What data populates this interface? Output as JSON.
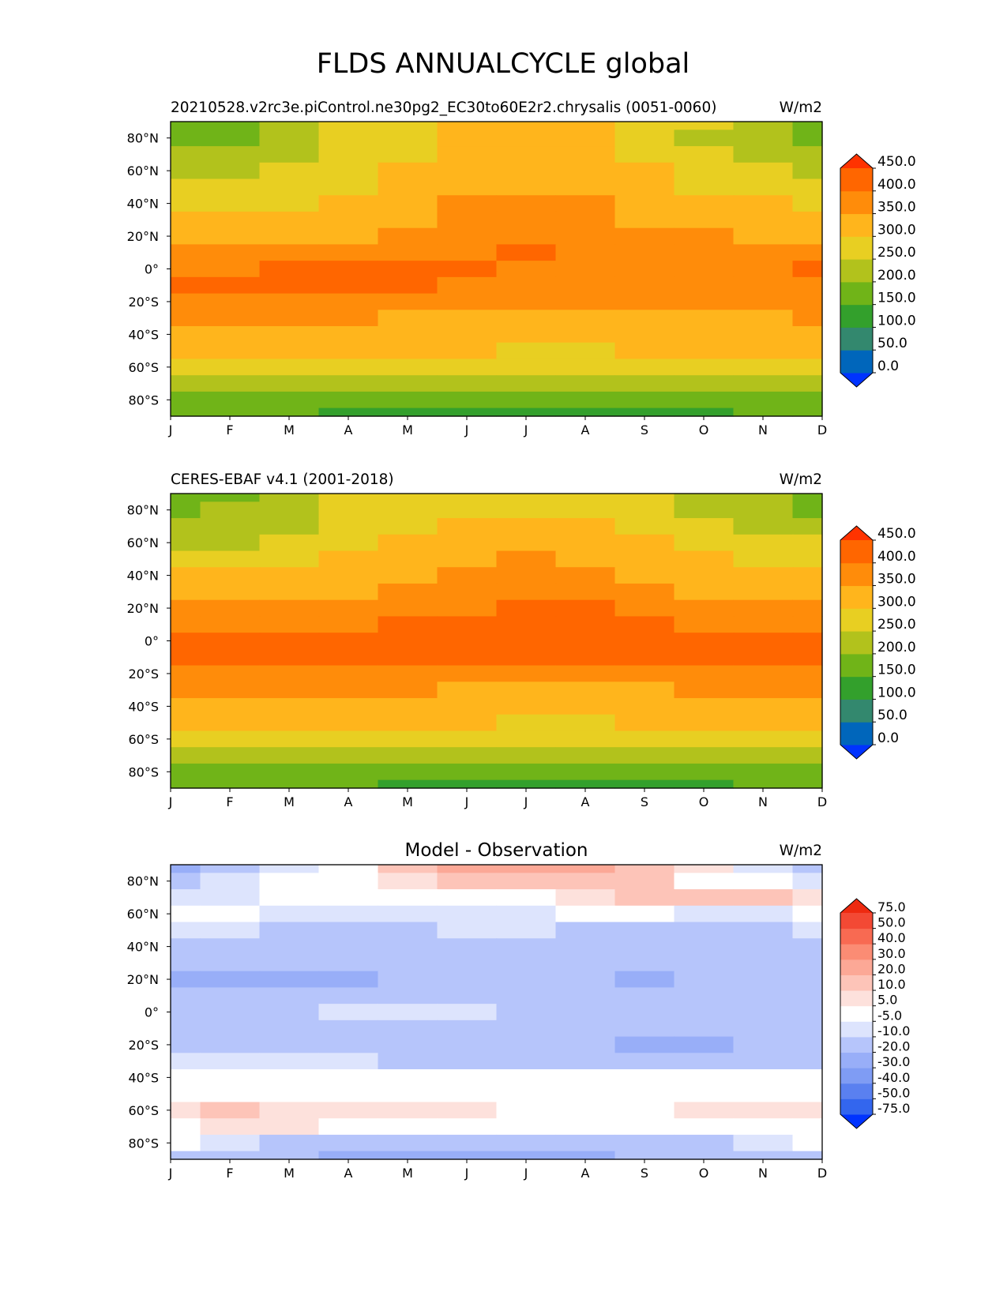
{
  "figure": {
    "title": "FLDS ANNUALCYCLE global"
  },
  "colors": {
    "abs_levels": [
      "#0033ff",
      "#0066bb",
      "#33886e",
      "#33a02c",
      "#70b418",
      "#b2c21c",
      "#e8cf22",
      "#ffb51c",
      "#ff8c0a",
      "#ff6600",
      "#ff3300"
    ],
    "diff_levels": [
      "#0033ff",
      "#3366ee",
      "#5a80f0",
      "#7f9cf4",
      "#98aef8",
      "#b6c5fb",
      "#dde4fd",
      "#ffffff",
      "#fde1dc",
      "#fdc4b8",
      "#fca896",
      "#fb8c74",
      "#f86a52",
      "#f34934",
      "#ee2a10"
    ]
  },
  "chart_data": [
    {
      "type": "heatmap",
      "panel": "model",
      "title_left": "20210528.v2rc3e.piControl.ne30pg2_EC30to60E2r2.chrysalis (0051-0060)",
      "title_center": "",
      "title_right": "W/m2",
      "x_ticklabels": [
        "J",
        "F",
        "M",
        "A",
        "M",
        "J",
        "J",
        "A",
        "S",
        "O",
        "N",
        "D"
      ],
      "y_ticklabels": [
        "80°N",
        "60°N",
        "40°N",
        "20°N",
        "0°",
        "20°S",
        "40°S",
        "60°S",
        "80°S"
      ],
      "y_ticks": [
        80,
        60,
        40,
        20,
        0,
        -20,
        -40,
        -60,
        -80
      ],
      "xlim": [
        1,
        12
      ],
      "ylim": [
        -90,
        90
      ],
      "colorbar_levels": [
        "0.0",
        "50.0",
        "100.0",
        "150.0",
        "200.0",
        "250.0",
        "300.0",
        "350.0",
        "400.0",
        "450.0"
      ],
      "colorbar_extend": "both",
      "lat_rows": [
        90,
        80,
        70,
        60,
        50,
        40,
        30,
        20,
        10,
        0,
        -10,
        -20,
        -30,
        -40,
        -50,
        -60,
        -70,
        -80,
        -90
      ],
      "values": [
        [
          190,
          190,
          220,
          255,
          280,
          300,
          310,
          300,
          280,
          250,
          220,
          190
        ],
        [
          190,
          195,
          225,
          260,
          285,
          300,
          310,
          300,
          275,
          245,
          215,
          190
        ],
        [
          215,
          215,
          240,
          270,
          295,
          310,
          315,
          305,
          285,
          260,
          240,
          215
        ],
        [
          240,
          240,
          255,
          280,
          305,
          320,
          325,
          315,
          300,
          280,
          260,
          245
        ],
        [
          265,
          265,
          275,
          295,
          320,
          340,
          345,
          335,
          315,
          295,
          280,
          270
        ],
        [
          285,
          285,
          290,
          310,
          330,
          355,
          365,
          355,
          330,
          310,
          300,
          290
        ],
        [
          305,
          305,
          310,
          320,
          340,
          360,
          370,
          365,
          345,
          325,
          315,
          310
        ],
        [
          330,
          330,
          335,
          345,
          355,
          370,
          385,
          380,
          365,
          350,
          340,
          335
        ],
        [
          360,
          360,
          365,
          375,
          385,
          395,
          400,
          398,
          390,
          380,
          370,
          365
        ],
        [
          395,
          395,
          405,
          408,
          405,
          400,
          398,
          398,
          398,
          398,
          398,
          400
        ],
        [
          400,
          400,
          405,
          405,
          402,
          395,
          390,
          390,
          392,
          395,
          397,
          398
        ],
        [
          385,
          385,
          388,
          380,
          370,
          360,
          355,
          355,
          358,
          362,
          368,
          375
        ],
        [
          365,
          365,
          362,
          350,
          340,
          335,
          330,
          330,
          335,
          340,
          345,
          350
        ],
        [
          345,
          345,
          342,
          330,
          322,
          318,
          315,
          315,
          318,
          322,
          328,
          335
        ],
        [
          318,
          318,
          315,
          310,
          305,
          300,
          298,
          298,
          300,
          305,
          310,
          315
        ],
        [
          285,
          285,
          282,
          278,
          275,
          272,
          270,
          270,
          272,
          275,
          280,
          282
        ],
        [
          235,
          232,
          228,
          222,
          218,
          215,
          212,
          212,
          215,
          220,
          225,
          230
        ],
        [
          195,
          190,
          180,
          170,
          165,
          158,
          155,
          155,
          160,
          168,
          178,
          188
        ],
        [
          175,
          170,
          155,
          145,
          140,
          135,
          130,
          130,
          135,
          145,
          160,
          170
        ]
      ]
    },
    {
      "type": "heatmap",
      "panel": "observation",
      "title_left": "CERES-EBAF v4.1 (2001-2018)",
      "title_center": "",
      "title_right": "W/m2",
      "x_ticklabels": [
        "J",
        "F",
        "M",
        "A",
        "M",
        "J",
        "J",
        "A",
        "S",
        "O",
        "N",
        "D"
      ],
      "y_ticklabels": [
        "80°N",
        "60°N",
        "40°N",
        "20°N",
        "0°",
        "20°S",
        "40°S",
        "60°S",
        "80°S"
      ],
      "y_ticks": [
        80,
        60,
        40,
        20,
        0,
        -20,
        -40,
        -60,
        -80
      ],
      "xlim": [
        1,
        12
      ],
      "ylim": [
        -90,
        90
      ],
      "colorbar_levels": [
        "0.0",
        "50.0",
        "100.0",
        "150.0",
        "200.0",
        "250.0",
        "300.0",
        "350.0",
        "400.0",
        "450.0"
      ],
      "colorbar_extend": "both",
      "lat_rows": [
        90,
        80,
        70,
        60,
        50,
        40,
        30,
        20,
        10,
        0,
        -10,
        -20,
        -30,
        -40,
        -50,
        -60,
        -70,
        -80,
        -90
      ],
      "values": [
        [
          195,
          195,
          225,
          260,
          280,
          290,
          290,
          280,
          265,
          240,
          215,
          195
        ],
        [
          195,
          200,
          230,
          262,
          285,
          295,
          298,
          290,
          270,
          245,
          220,
          195
        ],
        [
          220,
          220,
          245,
          272,
          298,
          315,
          320,
          312,
          292,
          265,
          245,
          222
        ],
        [
          248,
          248,
          262,
          285,
          310,
          328,
          335,
          328,
          310,
          290,
          268,
          250
        ],
        [
          275,
          275,
          285,
          302,
          325,
          345,
          352,
          345,
          328,
          308,
          292,
          280
        ],
        [
          300,
          300,
          305,
          320,
          340,
          360,
          372,
          365,
          345,
          325,
          312,
          302
        ],
        [
          325,
          325,
          330,
          340,
          355,
          378,
          392,
          388,
          368,
          348,
          335,
          328
        ],
        [
          350,
          350,
          355,
          365,
          378,
          398,
          408,
          405,
          392,
          375,
          360,
          352
        ],
        [
          380,
          380,
          385,
          395,
          402,
          410,
          415,
          412,
          405,
          395,
          388,
          383
        ],
        [
          410,
          410,
          412,
          412,
          410,
          410,
          410,
          410,
          410,
          410,
          410,
          410
        ],
        [
          412,
          412,
          412,
          410,
          408,
          405,
          402,
          402,
          405,
          408,
          410,
          412
        ],
        [
          395,
          395,
          392,
          385,
          380,
          375,
          372,
          372,
          375,
          380,
          385,
          392
        ],
        [
          372,
          372,
          370,
          362,
          355,
          348,
          345,
          345,
          348,
          355,
          360,
          365
        ],
        [
          348,
          348,
          345,
          338,
          330,
          325,
          322,
          322,
          325,
          330,
          338,
          342
        ],
        [
          318,
          318,
          316,
          312,
          305,
          300,
          298,
          298,
          300,
          305,
          310,
          314
        ],
        [
          280,
          280,
          278,
          275,
          272,
          268,
          266,
          266,
          268,
          272,
          276,
          278
        ],
        [
          228,
          225,
          220,
          215,
          210,
          208,
          205,
          205,
          208,
          212,
          218,
          222
        ],
        [
          195,
          188,
          178,
          168,
          162,
          158,
          155,
          155,
          158,
          165,
          175,
          185
        ],
        [
          180,
          175,
          162,
          150,
          145,
          140,
          138,
          138,
          140,
          148,
          162,
          172
        ]
      ]
    },
    {
      "type": "heatmap",
      "panel": "difference",
      "title_left": "",
      "title_center": "Model - Observation",
      "title_right": "W/m2",
      "x_ticklabels": [
        "J",
        "F",
        "M",
        "A",
        "M",
        "J",
        "J",
        "A",
        "S",
        "O",
        "N",
        "D"
      ],
      "y_ticklabels": [
        "80°N",
        "60°N",
        "40°N",
        "20°N",
        "0°",
        "20°S",
        "40°S",
        "60°S",
        "80°S"
      ],
      "y_ticks": [
        80,
        60,
        40,
        20,
        0,
        -20,
        -40,
        -60,
        -80
      ],
      "xlim": [
        1,
        12
      ],
      "ylim": [
        -90,
        90
      ],
      "colorbar_levels": [
        "-75.0",
        "-50.0",
        "-40.0",
        "-30.0",
        "-20.0",
        "-10.0",
        "-5.0",
        "5.0",
        "10.0",
        "20.0",
        "30.0",
        "40.0",
        "50.0",
        "75.0"
      ],
      "colorbar_extend": "both",
      "lat_rows": [
        90,
        80,
        70,
        60,
        50,
        40,
        30,
        20,
        10,
        0,
        -10,
        -20,
        -30,
        -40,
        -50,
        -60,
        -70,
        -80,
        -90
      ],
      "values": [
        [
          -25,
          -12,
          -6,
          4,
          14,
          22,
          24,
          22,
          14,
          6,
          -6,
          -15
        ],
        [
          -12,
          -8,
          -4,
          2,
          8,
          16,
          18,
          16,
          10,
          4,
          -2,
          -6
        ],
        [
          -6,
          -6,
          -4,
          2,
          2,
          2,
          2,
          8,
          12,
          14,
          12,
          6
        ],
        [
          -4,
          -4,
          -8,
          -8,
          -6,
          -6,
          -10,
          -4,
          -4,
          -8,
          -6,
          -4
        ],
        [
          -8,
          -10,
          -12,
          -12,
          -12,
          -10,
          -10,
          -12,
          -12,
          -12,
          -12,
          -10
        ],
        [
          -14,
          -14,
          -14,
          -15,
          -15,
          -14,
          -14,
          -14,
          -14,
          -15,
          -15,
          -15
        ],
        [
          -20,
          -20,
          -18,
          -15,
          -15,
          -14,
          -14,
          -15,
          -15,
          -16,
          -16,
          -16
        ],
        [
          -22,
          -25,
          -24,
          -22,
          -18,
          -15,
          -14,
          -16,
          -22,
          -16,
          -16,
          -16
        ],
        [
          -18,
          -18,
          -16,
          -16,
          -15,
          -14,
          -14,
          -15,
          -14,
          -14,
          -14,
          -14
        ],
        [
          -15,
          -14,
          -12,
          -8,
          -6,
          -8,
          -12,
          -12,
          -12,
          -12,
          -12,
          -12
        ],
        [
          -12,
          -12,
          -12,
          -12,
          -12,
          -12,
          -14,
          -14,
          -14,
          -14,
          -12,
          -12
        ],
        [
          -12,
          -12,
          -12,
          -12,
          -12,
          -14,
          -14,
          -18,
          -22,
          -22,
          -16,
          -16
        ],
        [
          -8,
          -8,
          -8,
          -10,
          -12,
          -12,
          -14,
          -14,
          -14,
          -14,
          -14,
          -14
        ],
        [
          -2,
          -2,
          -2,
          -2,
          -2,
          -2,
          -2,
          -2,
          -2,
          -2,
          -2,
          -2
        ],
        [
          4,
          4,
          4,
          2,
          4,
          3,
          2,
          2,
          2,
          2,
          2,
          2
        ],
        [
          8,
          10,
          8,
          6,
          8,
          6,
          4,
          4,
          4,
          6,
          6,
          5
        ],
        [
          4,
          6,
          6,
          4,
          2,
          2,
          2,
          2,
          2,
          2,
          4,
          4
        ],
        [
          -4,
          -6,
          -12,
          -12,
          -12,
          -12,
          -12,
          -12,
          -12,
          -12,
          -8,
          -4
        ],
        [
          -12,
          -14,
          -20,
          -22,
          -22,
          -22,
          -22,
          -22,
          -20,
          -18,
          -16,
          -12
        ]
      ]
    }
  ]
}
